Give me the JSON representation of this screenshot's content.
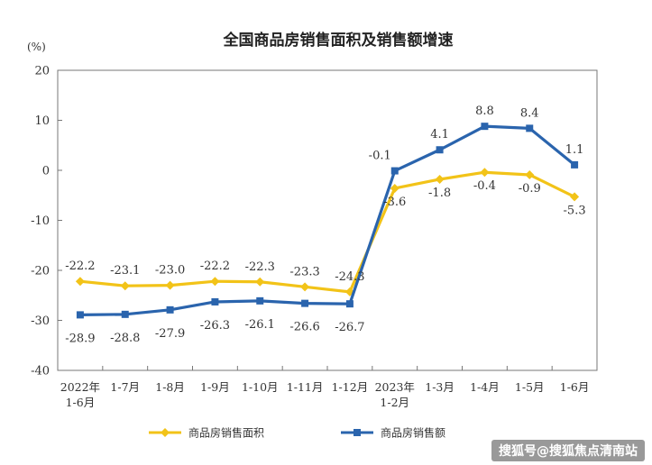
{
  "chart_data": {
    "type": "line",
    "title": "全国商品房销售面积及销售额增速",
    "ylabel": "(%)",
    "xlabel": "",
    "ylim": [
      -40,
      20
    ],
    "yticks": [
      20,
      10,
      0,
      -10,
      -20,
      -30,
      -40
    ],
    "categories": [
      [
        "2022年",
        "1-6月"
      ],
      [
        "1-7月"
      ],
      [
        "1-8月"
      ],
      [
        "1-9月"
      ],
      [
        "1-10月"
      ],
      [
        "1-11月"
      ],
      [
        "1-12月"
      ],
      [
        "2023年",
        "1-2月"
      ],
      [
        "1-3月"
      ],
      [
        "1-4月"
      ],
      [
        "1-5月"
      ],
      [
        "1-6月"
      ]
    ],
    "grid": false,
    "legend_position": "bottom",
    "series": [
      {
        "name": "商品房销售面积",
        "color": "#f2c318",
        "marker": "diamond",
        "values": [
          -22.2,
          -23.1,
          -23.0,
          -22.2,
          -22.3,
          -23.3,
          -24.3,
          -3.6,
          -1.8,
          -0.4,
          -0.9,
          -5.3
        ],
        "labels": [
          "-22.2",
          "-23.1",
          "-23.0",
          "-22.2",
          "-22.3",
          "-23.3",
          "-24.3",
          "-3.6",
          "-1.8",
          "-0.4",
          "-0.9",
          "-5.3"
        ]
      },
      {
        "name": "商品房销售额",
        "color": "#2a64ad",
        "marker": "square",
        "values": [
          -28.9,
          -28.8,
          -27.9,
          -26.3,
          -26.1,
          -26.6,
          -26.7,
          -0.1,
          4.1,
          8.8,
          8.4,
          1.1
        ],
        "labels": [
          "-28.9",
          "-28.8",
          "-27.9",
          "-26.3",
          "-26.1",
          "-26.6",
          "-26.7",
          "-0.1",
          "4.1",
          "8.8",
          "8.4",
          "1.1"
        ]
      }
    ]
  },
  "watermark": "搜狐号@搜狐焦点清南站"
}
